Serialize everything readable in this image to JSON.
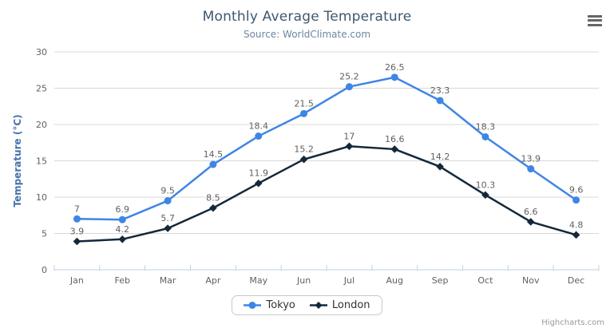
{
  "chart_data": {
    "type": "line",
    "title": "Monthly Average Temperature",
    "subtitle": "Source: WorldClimate.com",
    "categories": [
      "Jan",
      "Feb",
      "Mar",
      "Apr",
      "May",
      "Jun",
      "Jul",
      "Aug",
      "Sep",
      "Oct",
      "Nov",
      "Dec"
    ],
    "xlabel": "",
    "ylabel": "Temperature (°C)",
    "ylim": [
      0,
      30
    ],
    "ytick_step": 5,
    "grid": true,
    "legend_position": "bottom",
    "data_labels": true,
    "series": [
      {
        "name": "Tokyo",
        "color": "#3e85e6",
        "marker": "circle",
        "values": [
          7,
          6.9,
          9.5,
          14.5,
          18.4,
          21.5,
          25.2,
          26.5,
          23.3,
          18.3,
          13.9,
          9.6
        ]
      },
      {
        "name": "London",
        "color": "#14283a",
        "marker": "diamond",
        "values": [
          3.9,
          4.2,
          5.7,
          8.5,
          11.9,
          15.2,
          17,
          16.6,
          14.2,
          10.3,
          6.6,
          4.8
        ]
      }
    ]
  },
  "credits": "Highcharts.com",
  "icons": {
    "menu": "hamburger-icon"
  },
  "palette": {
    "title": "#3e576f",
    "subtitle": "#6d86a0",
    "axis_label": "#606060",
    "axis_line": "#c0d0e0",
    "gridline": "#d8d8d8",
    "y_title": "#4572a7",
    "data_label": "#606060",
    "legend_text": "#333333",
    "legend_border": "#c8c8c8",
    "credits": "#999999",
    "menu_icon": "#666666",
    "background": "#ffffff"
  }
}
